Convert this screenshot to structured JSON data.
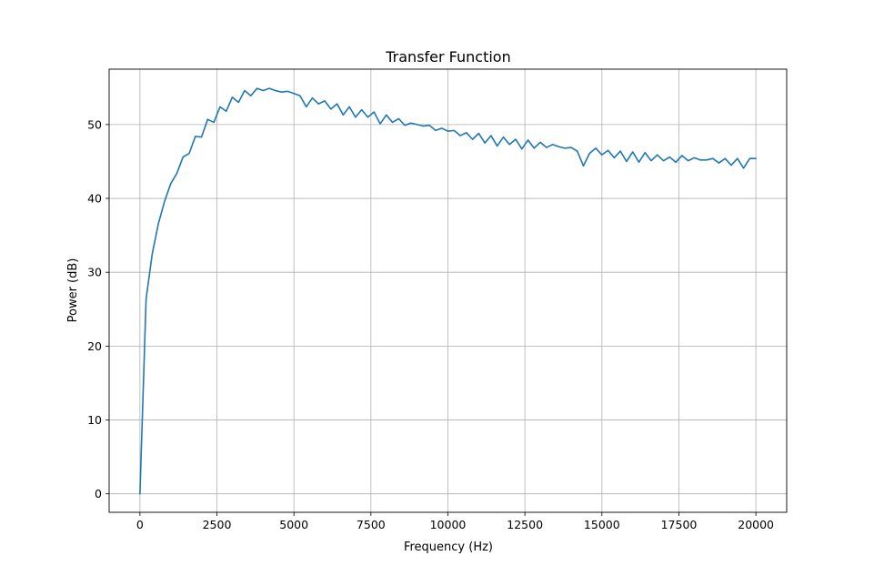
{
  "chart_data": {
    "type": "line",
    "title": "Transfer Function",
    "xlabel": "Frequency (Hz)",
    "ylabel": "Power (dB)",
    "xlim": [
      -1000,
      21000
    ],
    "ylim": [
      -2.5,
      57.5
    ],
    "xticks": [
      0,
      2500,
      5000,
      7500,
      10000,
      12500,
      15000,
      17500,
      20000
    ],
    "yticks": [
      0,
      10,
      20,
      30,
      40,
      50
    ],
    "grid": true,
    "legend": "none",
    "series": [
      {
        "color": "#1f77b4",
        "x": [
          0,
          200,
          400,
          600,
          800,
          1000,
          1200,
          1400,
          1600,
          1800,
          2000,
          2200,
          2400,
          2600,
          2800,
          3000,
          3200,
          3400,
          3600,
          3800,
          4000,
          4200,
          4400,
          4600,
          4800,
          5000,
          5200,
          5400,
          5600,
          5800,
          6000,
          6200,
          6400,
          6600,
          6800,
          7000,
          7200,
          7400,
          7600,
          7800,
          8000,
          8200,
          8400,
          8600,
          8800,
          9000,
          9200,
          9400,
          9600,
          9800,
          10000,
          10200,
          10400,
          10600,
          10800,
          11000,
          11200,
          11400,
          11600,
          11800,
          12000,
          12200,
          12400,
          12600,
          12800,
          13000,
          13200,
          13400,
          13600,
          13800,
          14000,
          14200,
          14400,
          14600,
          14800,
          15000,
          15200,
          15400,
          15600,
          15800,
          16000,
          16200,
          16400,
          16600,
          16800,
          17000,
          17200,
          17400,
          17600,
          17800,
          18000,
          18200,
          18400,
          18600,
          18800,
          19000,
          19200,
          19400,
          19600,
          19800,
          20000
        ],
        "y": [
          0,
          26.4,
          32.5,
          36.6,
          39.6,
          42.0,
          43.4,
          45.6,
          46.1,
          48.4,
          48.3,
          50.7,
          50.3,
          52.4,
          51.8,
          53.7,
          53.0,
          54.6,
          53.9,
          54.9,
          54.6,
          54.9,
          54.6,
          54.4,
          54.5,
          54.2,
          53.9,
          52.4,
          53.6,
          52.8,
          53.2,
          52.1,
          52.8,
          51.3,
          52.4,
          51.0,
          52.0,
          51.0,
          51.7,
          50.1,
          51.3,
          50.3,
          50.8,
          49.9,
          50.2,
          50.0,
          49.8,
          49.9,
          49.2,
          49.5,
          49.1,
          49.2,
          48.5,
          48.9,
          48.0,
          48.8,
          47.5,
          48.5,
          47.1,
          48.3,
          47.3,
          48.0,
          46.7,
          47.9,
          46.8,
          47.6,
          46.9,
          47.3,
          47.0,
          46.8,
          46.9,
          46.4,
          44.4,
          46.1,
          46.8,
          45.9,
          46.5,
          45.5,
          46.4,
          45.0,
          46.3,
          44.9,
          46.2,
          45.1,
          45.9,
          45.1,
          45.6,
          44.9,
          45.8,
          45.1,
          45.5,
          45.2,
          45.2,
          45.4,
          44.8,
          45.4,
          44.5,
          45.4,
          44.1,
          45.4,
          45.4
        ]
      }
    ]
  }
}
